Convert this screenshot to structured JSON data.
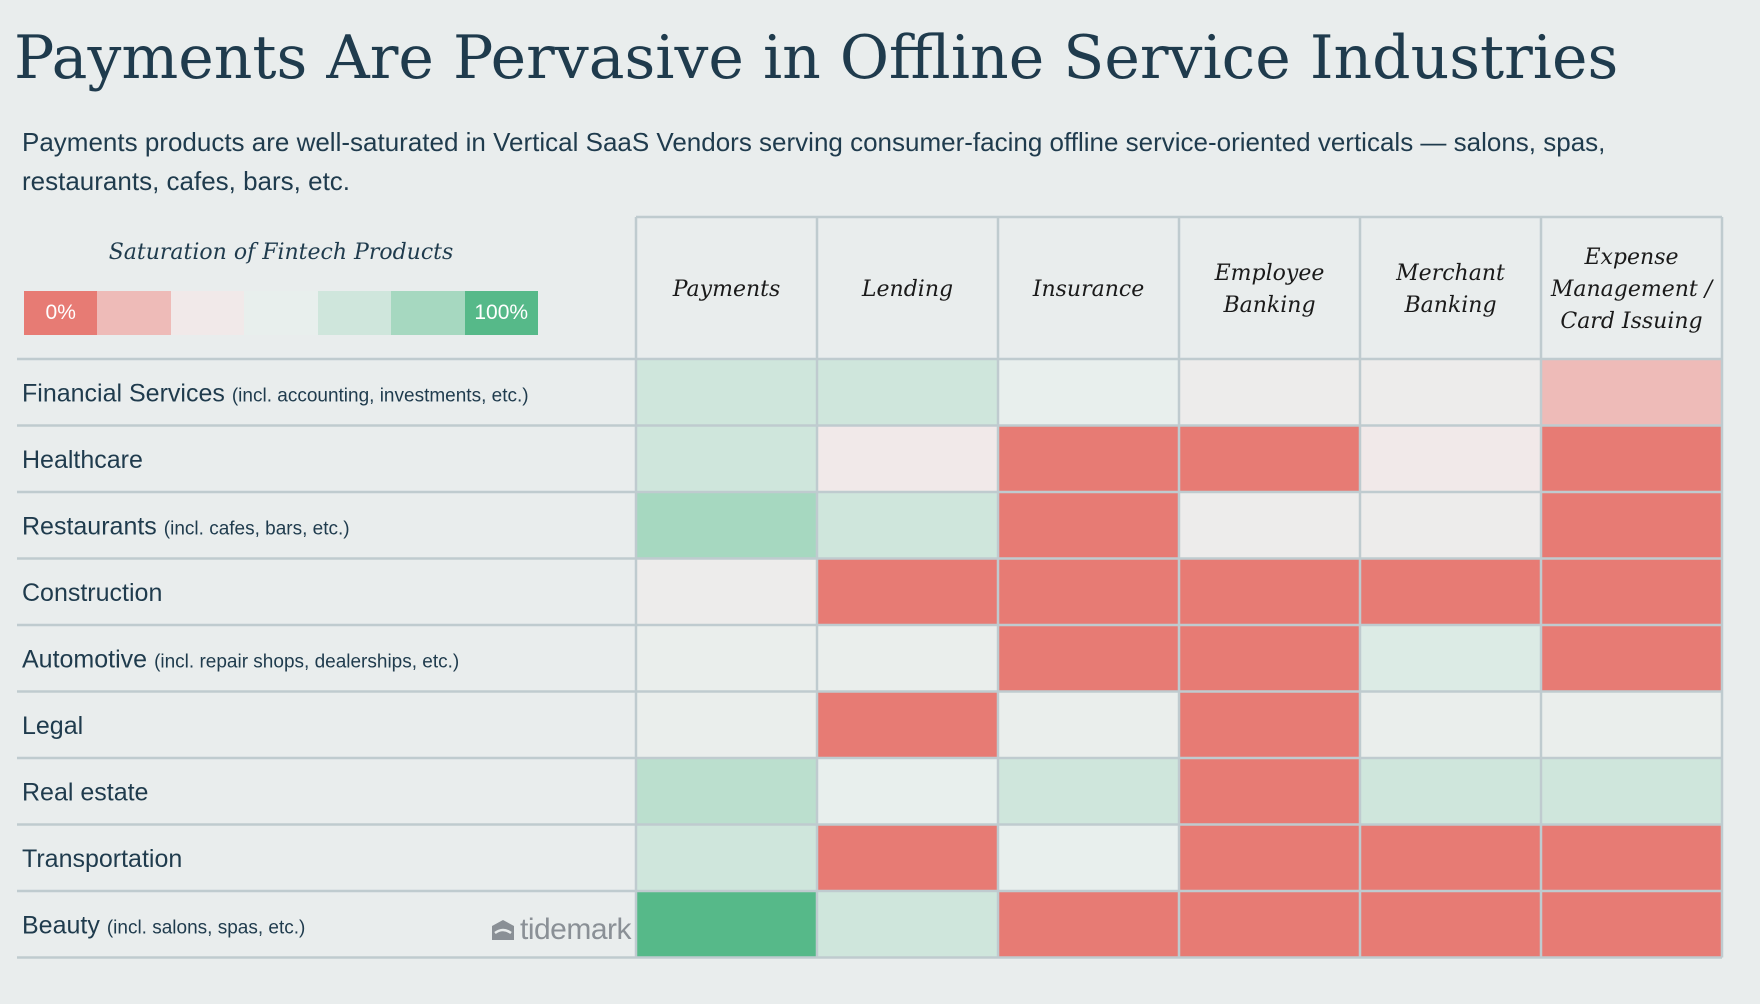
{
  "title": "Payments Are Pervasive in Offline Service Industries",
  "subtitle": "Payments products are well-saturated in Vertical SaaS Vendors serving consumer-facing offline service-oriented verticals — salons, spas, restaurants, cafes, bars, etc.",
  "legend": {
    "title": "Saturation of Fintech Products",
    "min_label": "0%",
    "max_label": "100%",
    "colors": [
      "#e77b74",
      "#eebbb8",
      "#f1e9e9",
      "#e8efed",
      "#cfe6dc",
      "#a6d8c0",
      "#56b989"
    ]
  },
  "logo": {
    "text": "tidemark",
    "icon": "tidemark-logo-icon"
  },
  "chart_data": {
    "type": "heatmap",
    "title": "Payments Are Pervasive in Offline Service Industries",
    "columns": [
      "Payments",
      "Lending",
      "Insurance",
      "Employee Banking",
      "Merchant Banking",
      "Expense Management / Card Issuing"
    ],
    "rows": [
      {
        "name": "Financial Services",
        "note": "(incl. accounting, investments, etc.)",
        "levels": [
          4,
          4,
          3,
          2.5,
          2.5,
          1
        ]
      },
      {
        "name": "Healthcare",
        "note": "",
        "levels": [
          4,
          2,
          0,
          0,
          2,
          0
        ]
      },
      {
        "name": "Restaurants",
        "note": "(incl. cafes, bars, etc.)",
        "levels": [
          5,
          4,
          0,
          2.5,
          2.5,
          0
        ]
      },
      {
        "name": "Construction",
        "note": "",
        "levels": [
          2.5,
          0,
          0,
          0,
          0,
          0
        ]
      },
      {
        "name": "Automotive",
        "note": "(incl. repair shops, dealerships, etc.)",
        "levels": [
          2.8,
          2.8,
          0,
          0,
          3.5,
          0
        ]
      },
      {
        "name": "Legal",
        "note": "",
        "levels": [
          2.8,
          0,
          2.8,
          0,
          2.8,
          2.8
        ]
      },
      {
        "name": "Real estate",
        "note": "",
        "levels": [
          4.5,
          3,
          4,
          0,
          4,
          4
        ]
      },
      {
        "name": "Transportation",
        "note": "",
        "levels": [
          4,
          0,
          3,
          0,
          0,
          0
        ]
      },
      {
        "name": "Beauty",
        "note": "(incl. salons, spas, etc.)",
        "levels": [
          6,
          4,
          0,
          0,
          0,
          0
        ]
      }
    ],
    "scale": "0 = 0% saturation, 6 = 100% saturation"
  }
}
